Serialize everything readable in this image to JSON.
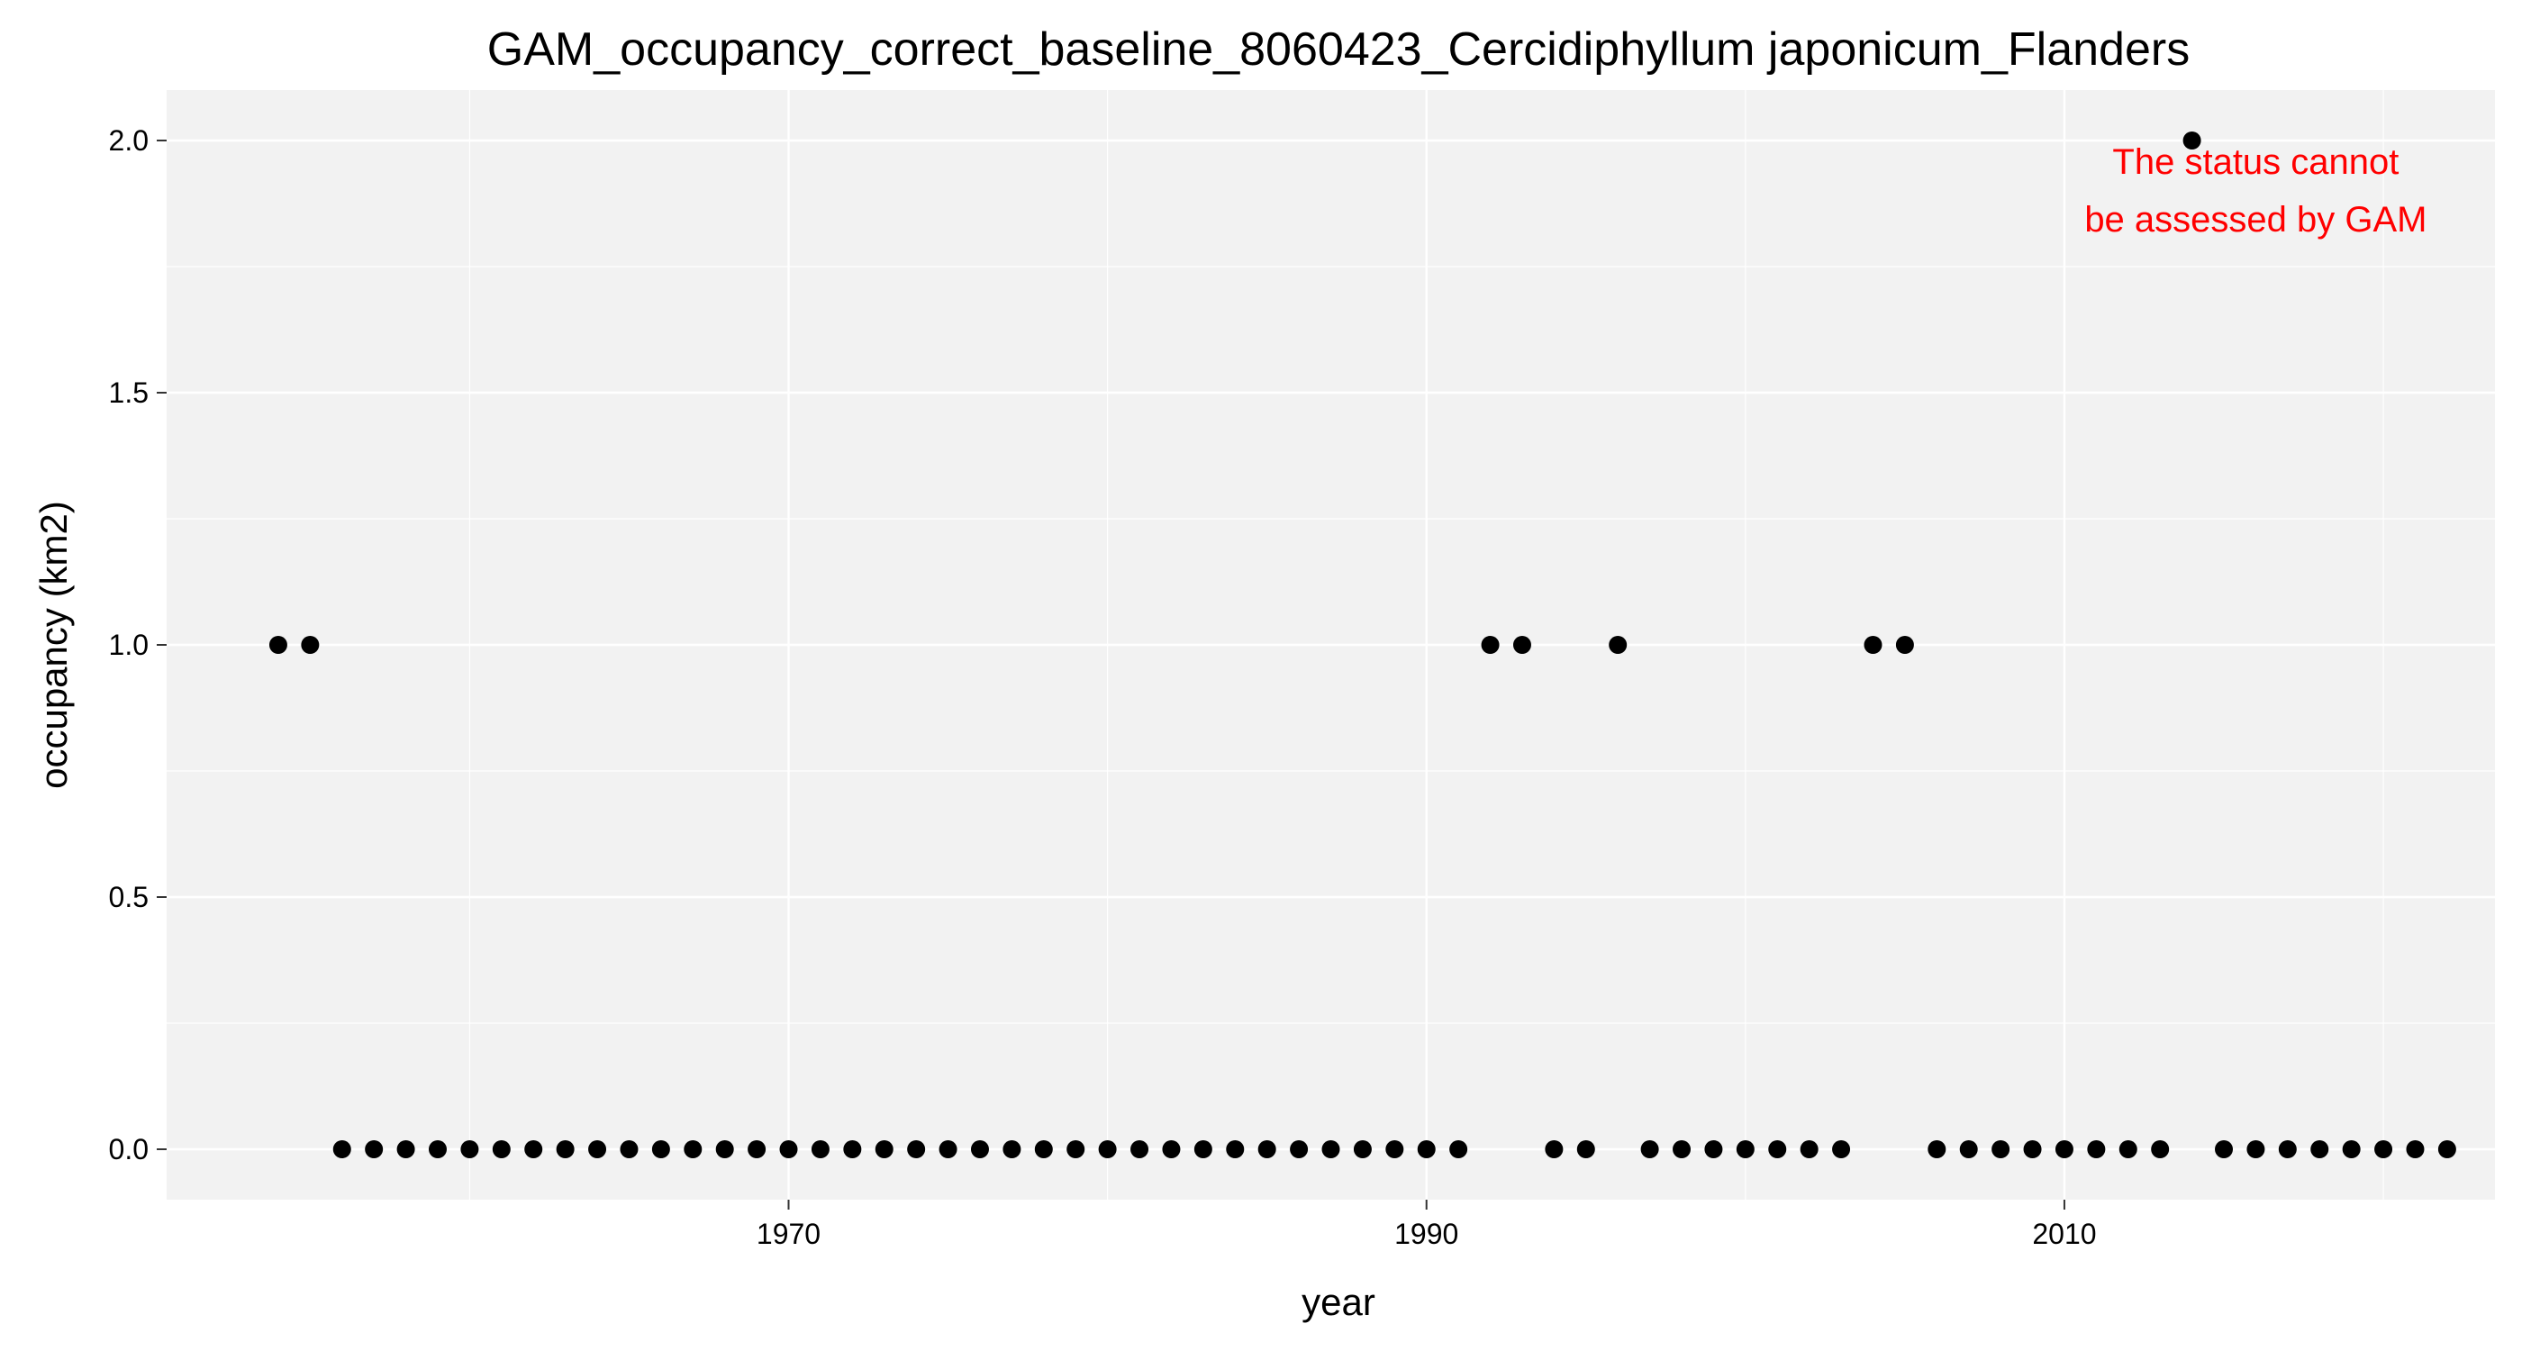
{
  "chart_data": {
    "type": "scatter",
    "title": "GAM_occupancy_correct_baseline_8060423_Cercidiphyllum japonicum_Flanders",
    "xlabel": "year",
    "ylabel": "occupancy (km2)",
    "xlim": [
      1950.5,
      2023.5
    ],
    "ylim": [
      -0.1,
      2.1
    ],
    "x_ticks": [
      1970,
      1990,
      2010
    ],
    "x_tick_labels": [
      "1970",
      "1990",
      "2010"
    ],
    "y_ticks": [
      0,
      0.5,
      1,
      1.5,
      2
    ],
    "y_tick_labels": [
      "0.0",
      "0.5",
      "1.0",
      "1.5",
      "2.0"
    ],
    "grid": true,
    "legend": "none",
    "point_color": "#000000",
    "x": [
      1954,
      1955,
      1956,
      1957,
      1958,
      1959,
      1960,
      1961,
      1962,
      1963,
      1964,
      1965,
      1966,
      1967,
      1968,
      1969,
      1970,
      1971,
      1972,
      1973,
      1974,
      1975,
      1976,
      1977,
      1978,
      1979,
      1980,
      1981,
      1982,
      1983,
      1984,
      1985,
      1986,
      1987,
      1988,
      1989,
      1990,
      1991,
      1992,
      1993,
      1994,
      1995,
      1996,
      1997,
      1998,
      1999,
      2000,
      2001,
      2002,
      2003,
      2004,
      2005,
      2006,
      2007,
      2008,
      2009,
      2010,
      2011,
      2012,
      2013,
      2014,
      2015,
      2016,
      2017,
      2018,
      2019,
      2020,
      2021,
      2022
    ],
    "y": [
      1,
      1,
      0,
      0,
      0,
      0,
      0,
      0,
      0,
      0,
      0,
      0,
      0,
      0,
      0,
      0,
      0,
      0,
      0,
      0,
      0,
      0,
      0,
      0,
      0,
      0,
      0,
      0,
      0,
      0,
      0,
      0,
      0,
      0,
      0,
      0,
      0,
      0,
      1,
      1,
      0,
      0,
      1,
      0,
      0,
      0,
      0,
      0,
      0,
      0,
      1,
      1,
      0,
      0,
      0,
      0,
      0,
      0,
      0,
      0,
      2,
      0,
      0,
      0,
      0,
      0,
      0,
      0,
      0
    ],
    "annotations": [
      {
        "lines": [
          "The status cannot",
          "be assessed by GAM"
        ],
        "x": 2016,
        "y": 1.9,
        "color": "#ff0000"
      }
    ]
  }
}
